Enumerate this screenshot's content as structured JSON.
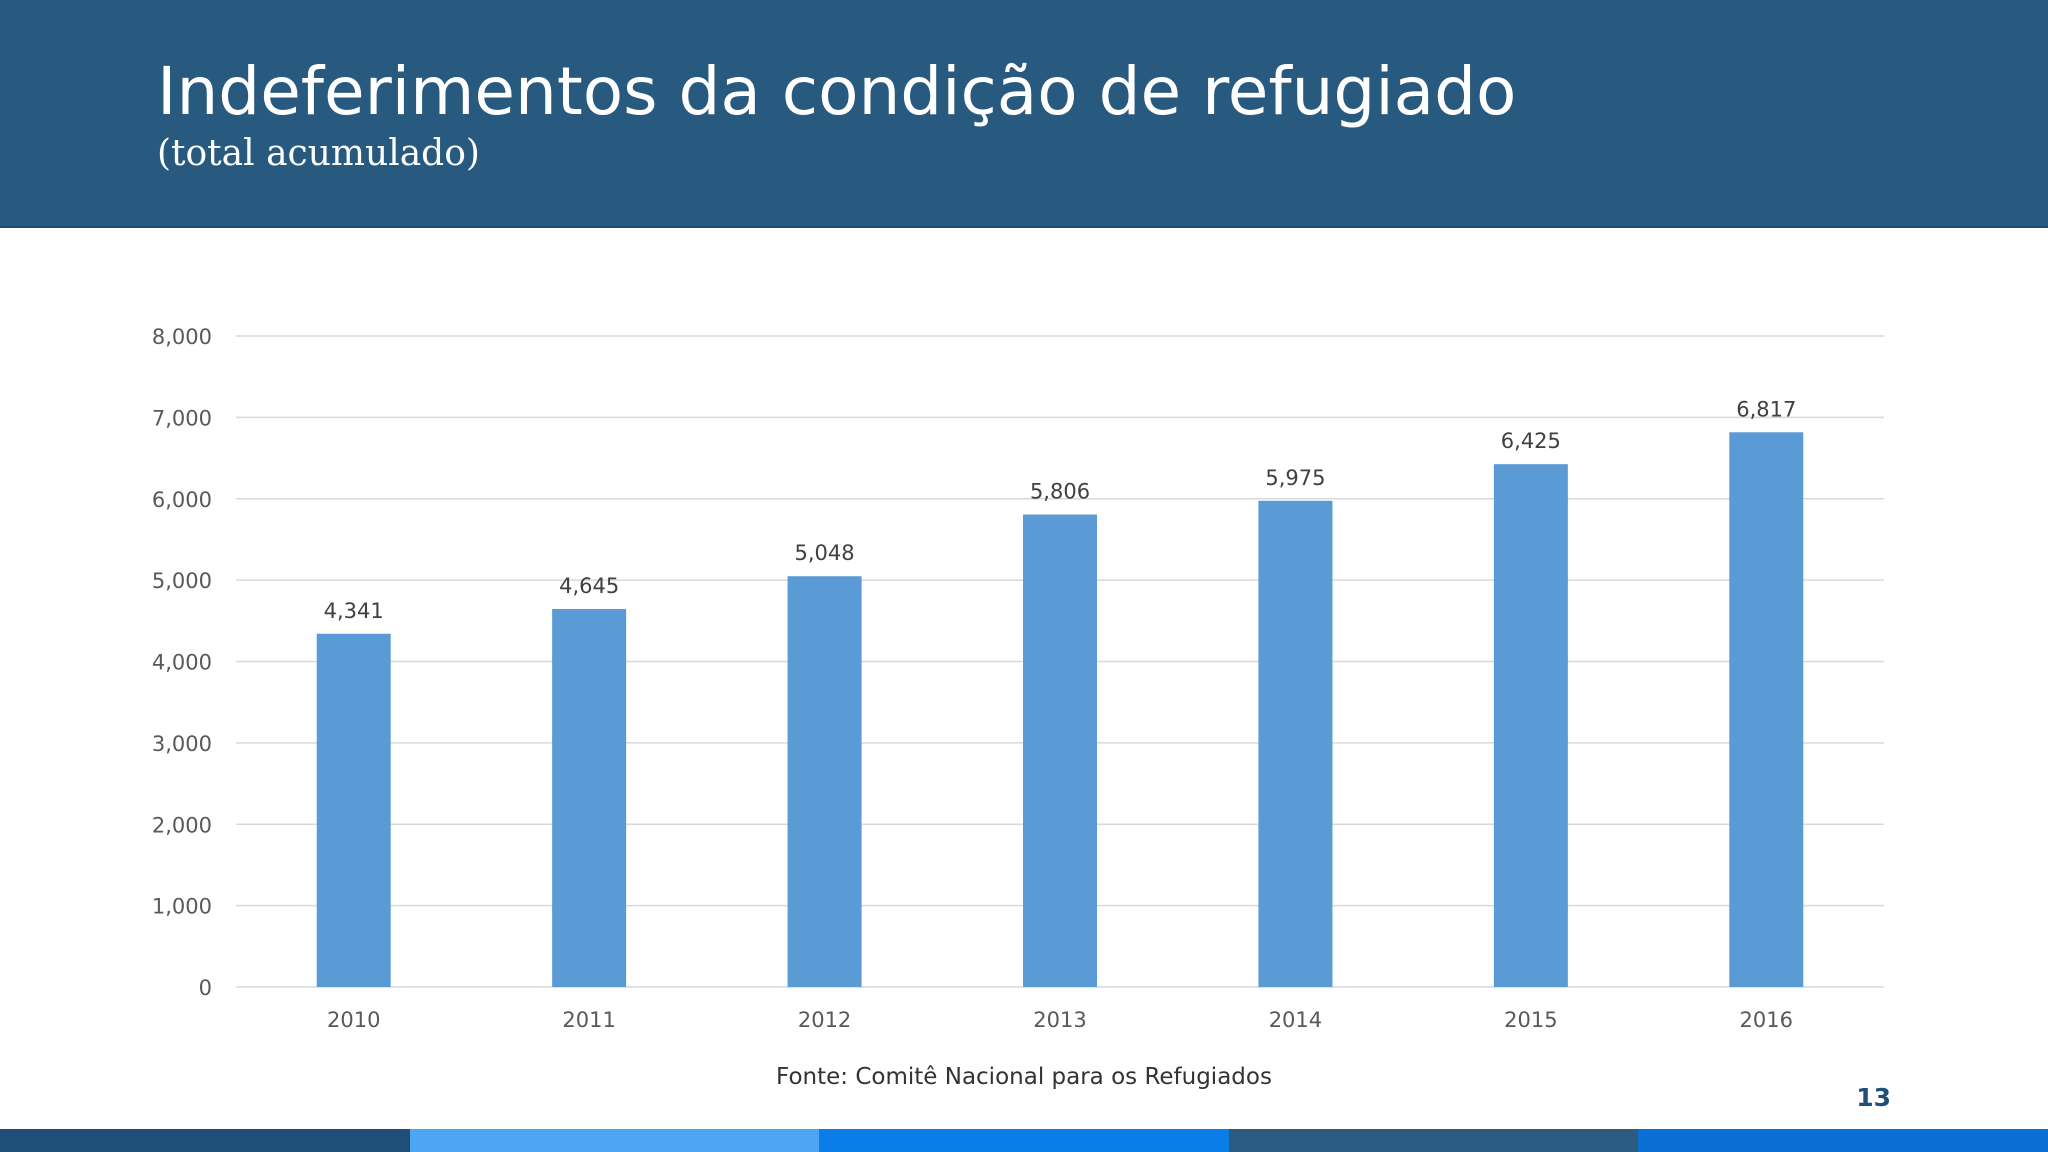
{
  "slide": {
    "title": "Indeferimentos da condição de refugiado",
    "subtitle": "(total acumulado)",
    "source": "Fonte: Comitê Nacional para os Refugiados",
    "page_number": "13"
  },
  "colors": {
    "header": "#28597f",
    "bar": "#5b9bd5",
    "gridline": "#d9d9d9",
    "axis_text": "#595959",
    "label_text": "#404040",
    "footer_segments": [
      "#1f4e79",
      "#4ea6f2",
      "#0a7de8",
      "#2b5b80",
      "#0a6fd4"
    ]
  },
  "chart_data": {
    "type": "bar",
    "title": "",
    "xlabel": "",
    "ylabel": "",
    "categories": [
      "2010",
      "2011",
      "2012",
      "2013",
      "2014",
      "2015",
      "2016"
    ],
    "values": [
      4341,
      4645,
      5048,
      5806,
      5975,
      6425,
      6817
    ],
    "value_labels": [
      "4,341",
      "4,645",
      "5,048",
      "5,806",
      "5,975",
      "6,425",
      "6,817"
    ],
    "ylim": [
      0,
      8000
    ],
    "yticks": [
      0,
      1000,
      2000,
      3000,
      4000,
      5000,
      6000,
      7000,
      8000
    ],
    "ytick_labels": [
      "0",
      "1,000",
      "2,000",
      "3,000",
      "4,000",
      "5,000",
      "6,000",
      "7,000",
      "8,000"
    ],
    "grid": true,
    "legend": "none"
  }
}
